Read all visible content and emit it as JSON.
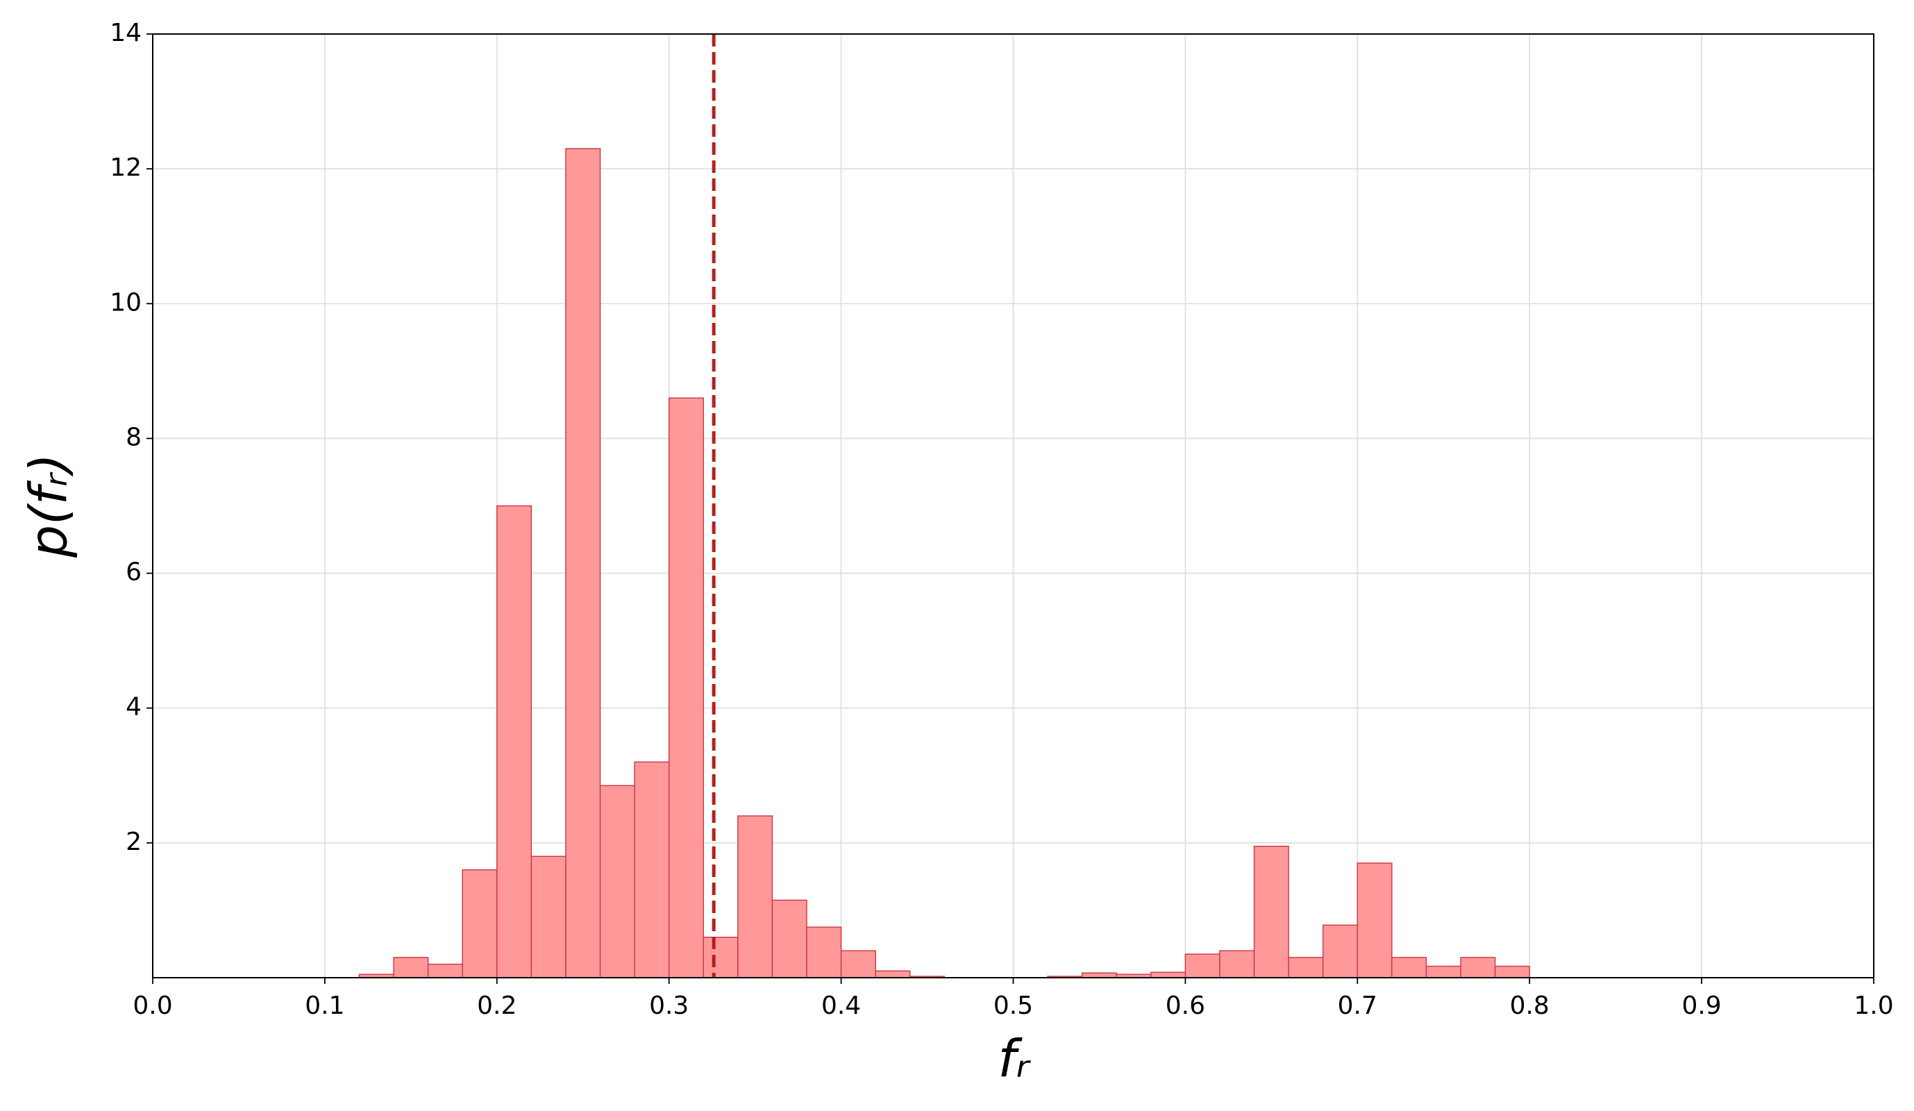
{
  "chart_data": {
    "type": "histogram",
    "xlabel": "fᵣ",
    "ylabel": "p(fᵣ)",
    "bins": [
      0.12,
      0.14,
      0.16,
      0.18,
      0.2,
      0.22,
      0.24,
      0.26,
      0.28,
      0.3,
      0.32,
      0.34,
      0.36,
      0.38,
      0.4,
      0.42,
      0.44,
      0.46,
      0.48,
      0.5,
      0.52,
      0.54,
      0.56,
      0.58,
      0.6,
      0.62,
      0.64,
      0.66,
      0.68,
      0.7,
      0.72,
      0.74,
      0.76,
      0.78,
      0.8
    ],
    "values": [
      0.05,
      0.3,
      0.2,
      1.6,
      7.0,
      1.8,
      12.3,
      2.85,
      3.2,
      8.6,
      0.6,
      2.4,
      1.15,
      0.75,
      0.4,
      0.1,
      0.02,
      0,
      0,
      0,
      0.02,
      0.07,
      0.05,
      0.08,
      0.35,
      0.4,
      1.95,
      0.3,
      0.78,
      1.7,
      0.3,
      0.17,
      0.3,
      0.17
    ],
    "color": "#ff9999",
    "edgecolor": "#cc3344",
    "vline": {
      "x": 0.326,
      "color": "#b22222",
      "style": "dashed"
    },
    "xlim": [
      0,
      1
    ],
    "xticks": [
      {
        "value": 0,
        "label": "0.0"
      },
      0.1,
      0.2,
      0.3,
      0.4,
      0.5,
      0.6,
      0.7,
      0.8,
      0.9,
      {
        "value": 1,
        "label": "1.0"
      }
    ],
    "ylim": [
      0,
      14
    ],
    "yticks": [
      2,
      4,
      6,
      8,
      10,
      12,
      14
    ],
    "grid": true
  }
}
